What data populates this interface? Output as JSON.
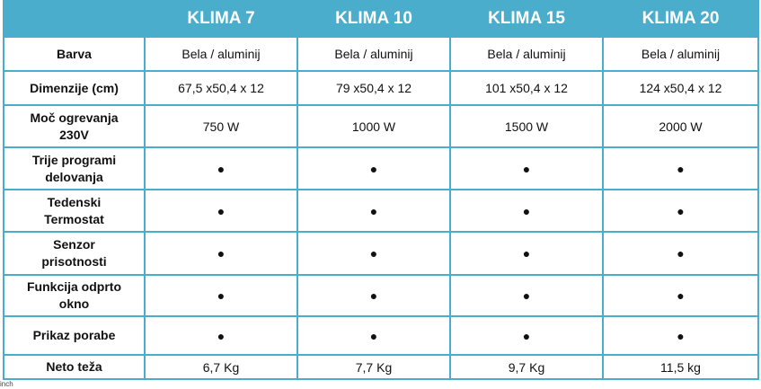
{
  "table": {
    "header": [
      "KLIMA 7",
      "KLIMA 10",
      "KLIMA 15",
      "KLIMA 20"
    ],
    "rows": [
      {
        "label": "Barva",
        "values": [
          "Bela / aluminij",
          "Bela / aluminij",
          "Bela / aluminij",
          "Bela / aluminij"
        ]
      },
      {
        "label": "Dimenzije (cm)",
        "values": [
          "67,5 x50,4 x 12",
          "79 x50,4 x 12",
          "101  x50,4 x 12",
          "124 x50,4 x 12"
        ]
      },
      {
        "label": "Moč ogrevanja 230V",
        "values": [
          "750 W",
          "1000 W",
          "1500 W",
          "2000 W"
        ]
      },
      {
        "label": "Trije programi delovanja",
        "values": [
          "●",
          "●",
          "●",
          "●"
        ]
      },
      {
        "label": "Tedenski Termostat",
        "values": [
          "●",
          "●",
          "●",
          "●"
        ]
      },
      {
        "label": "Senzor prisotnosti",
        "values": [
          "●",
          "●",
          "●",
          "●"
        ]
      },
      {
        "label": "Funkcija odprto okno",
        "values": [
          "●",
          "●",
          "●",
          "●"
        ]
      },
      {
        "label": "Prikaz porabe",
        "values": [
          "●",
          "●",
          "●",
          "●"
        ]
      },
      {
        "label": "Neto teža",
        "values": [
          "6,7 Kg",
          "7,7 Kg",
          "9,7 Kg",
          "11,5 kg"
        ]
      }
    ]
  },
  "footer_note": "inch"
}
